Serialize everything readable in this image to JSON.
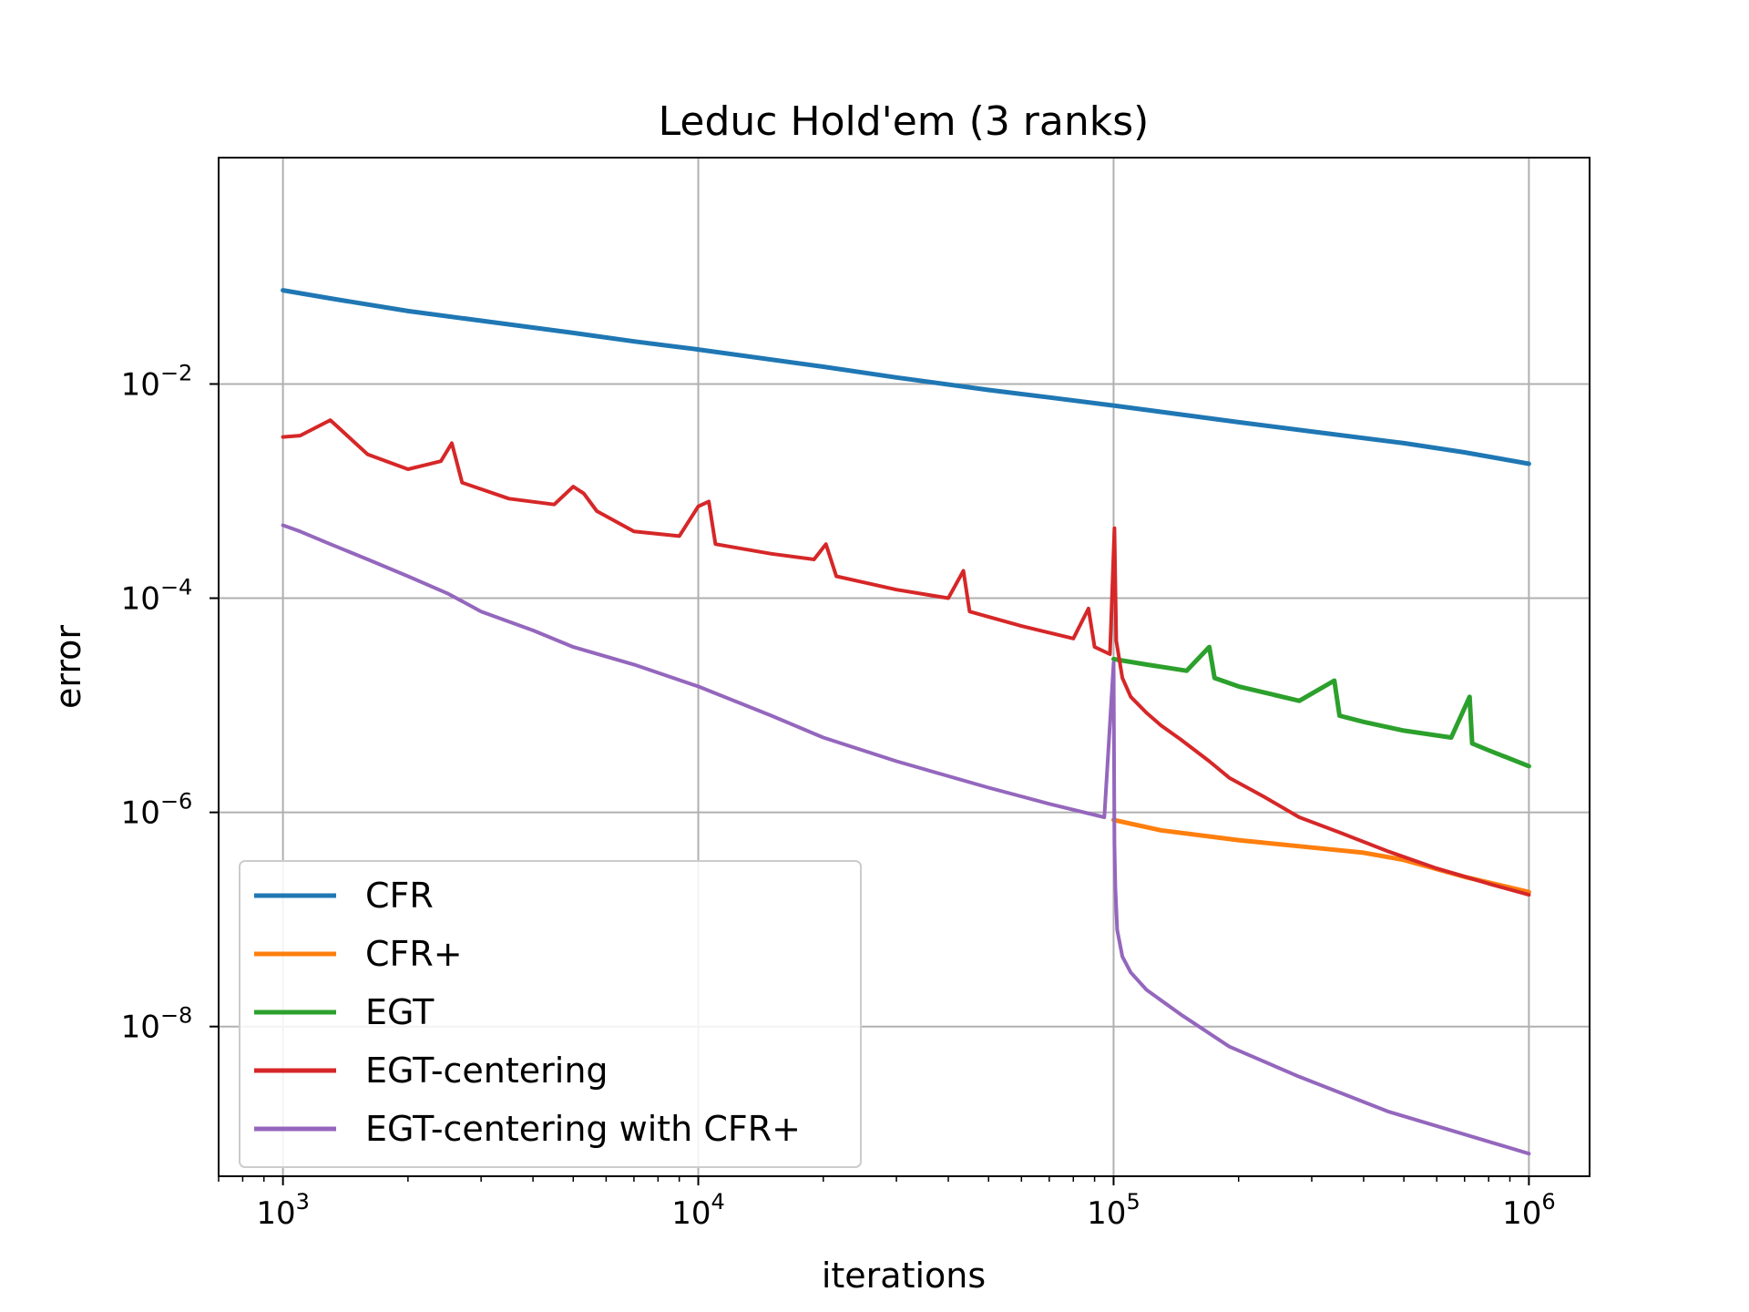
{
  "chart_data": {
    "type": "line",
    "title": "Leduc Hold'em (3 ranks)",
    "xlabel": "iterations",
    "ylabel": "error",
    "xscale": "log",
    "yscale": "log",
    "xlim": [
      700,
      1400000
    ],
    "ylim": [
      4e-10,
      1.3
    ],
    "grid": true,
    "legend_position": "lower-left",
    "x_ticks": [
      {
        "value": 1000,
        "base": "10",
        "exp": "3"
      },
      {
        "value": 10000,
        "base": "10",
        "exp": "4"
      },
      {
        "value": 100000,
        "base": "10",
        "exp": "5"
      },
      {
        "value": 1000000,
        "base": "10",
        "exp": "6"
      }
    ],
    "y_ticks": [
      {
        "value": 0.01,
        "base": "10",
        "exp": "−2"
      },
      {
        "value": 0.0001,
        "base": "10",
        "exp": "−4"
      },
      {
        "value": 1e-06,
        "base": "10",
        "exp": "−6"
      },
      {
        "value": 1e-08,
        "base": "10",
        "exp": "−8"
      }
    ],
    "series": [
      {
        "name": "CFR",
        "color": "#1f77b4",
        "x": [
          1000,
          1300,
          2000,
          3000,
          5000,
          7000,
          10000,
          20000,
          30000,
          50000,
          70000,
          100000,
          200000,
          300000,
          500000,
          700000,
          1000000
        ],
        "y": [
          0.075,
          0.063,
          0.048,
          0.039,
          0.03,
          0.025,
          0.021,
          0.0145,
          0.0115,
          0.0088,
          0.0075,
          0.0063,
          0.0044,
          0.0036,
          0.0028,
          0.0023,
          0.0018
        ]
      },
      {
        "name": "CFR+",
        "color": "#ff7f0e",
        "x": [
          100000,
          130000,
          200000,
          300000,
          400000,
          500000,
          700000,
          1000000
        ],
        "y": [
          8.5e-07,
          6.8e-07,
          5.5e-07,
          4.7e-07,
          4.2e-07,
          3.6e-07,
          2.5e-07,
          1.8e-07
        ]
      },
      {
        "name": "EGT",
        "color": "#2ca02c",
        "x": [
          100000,
          120000,
          150000,
          170000,
          175000,
          200000,
          280000,
          340000,
          350000,
          400000,
          500000,
          650000,
          720000,
          730000,
          800000,
          1000000
        ],
        "y": [
          2.7e-05,
          2.4e-05,
          2.1e-05,
          3.5e-05,
          1.8e-05,
          1.5e-05,
          1.1e-05,
          1.7e-05,
          8e-06,
          7e-06,
          5.8e-06,
          5e-06,
          1.2e-05,
          4.4e-06,
          3.8e-06,
          2.7e-06
        ]
      },
      {
        "name": "EGT-centering",
        "color": "#d62728",
        "x": [
          1000,
          1100,
          1300,
          1600,
          2000,
          2400,
          2550,
          2700,
          3500,
          4500,
          5000,
          5300,
          5700,
          7000,
          9000,
          10000,
          10600,
          11000,
          15000,
          19000,
          20300,
          21500,
          30000,
          40000,
          43500,
          45000,
          60000,
          80000,
          87000,
          90000,
          98000,
          100500,
          101500,
          105000,
          110000,
          120000,
          130000,
          145000,
          170000,
          190000,
          230000,
          280000,
          350000,
          460000,
          600000,
          820000,
          1000000
        ],
        "y": [
          0.0032,
          0.0033,
          0.0046,
          0.0022,
          0.0016,
          0.0019,
          0.0028,
          0.0012,
          0.00085,
          0.00075,
          0.0011,
          0.00095,
          0.00065,
          0.00042,
          0.00038,
          0.00072,
          0.0008,
          0.00032,
          0.00026,
          0.00023,
          0.00032,
          0.00016,
          0.00012,
          0.0001,
          0.00018,
          7.5e-05,
          5.5e-05,
          4.2e-05,
          8e-05,
          3.5e-05,
          3e-05,
          0.00045,
          4e-05,
          1.8e-05,
          1.2e-05,
          8.5e-06,
          6.5e-06,
          4.8e-06,
          3e-06,
          2.1e-06,
          1.4e-06,
          9e-07,
          6.5e-07,
          4.3e-07,
          3e-07,
          2.1e-07,
          1.7e-07
        ]
      },
      {
        "name": "EGT-centering with CFR+",
        "color": "#9467bd",
        "x": [
          1000,
          1100,
          1300,
          1600,
          2000,
          2500,
          3000,
          4000,
          5000,
          7000,
          10000,
          15000,
          20000,
          30000,
          50000,
          70000,
          95000,
          100000,
          100500,
          101000,
          102000,
          105000,
          110000,
          120000,
          145000,
          190000,
          280000,
          460000,
          820000,
          1000000
        ],
        "y": [
          0.00048,
          0.00042,
          0.00032,
          0.00023,
          0.00016,
          0.00011,
          7.5e-05,
          5e-05,
          3.5e-05,
          2.4e-05,
          1.5e-05,
          8e-06,
          5e-06,
          3e-06,
          1.7e-06,
          1.2e-06,
          9e-07,
          2.5e-05,
          5e-07,
          2e-07,
          8e-08,
          4.5e-08,
          3.2e-08,
          2.2e-08,
          1.3e-08,
          6.5e-09,
          3.4e-09,
          1.6e-09,
          8.2e-10,
          6.5e-10
        ]
      }
    ]
  }
}
